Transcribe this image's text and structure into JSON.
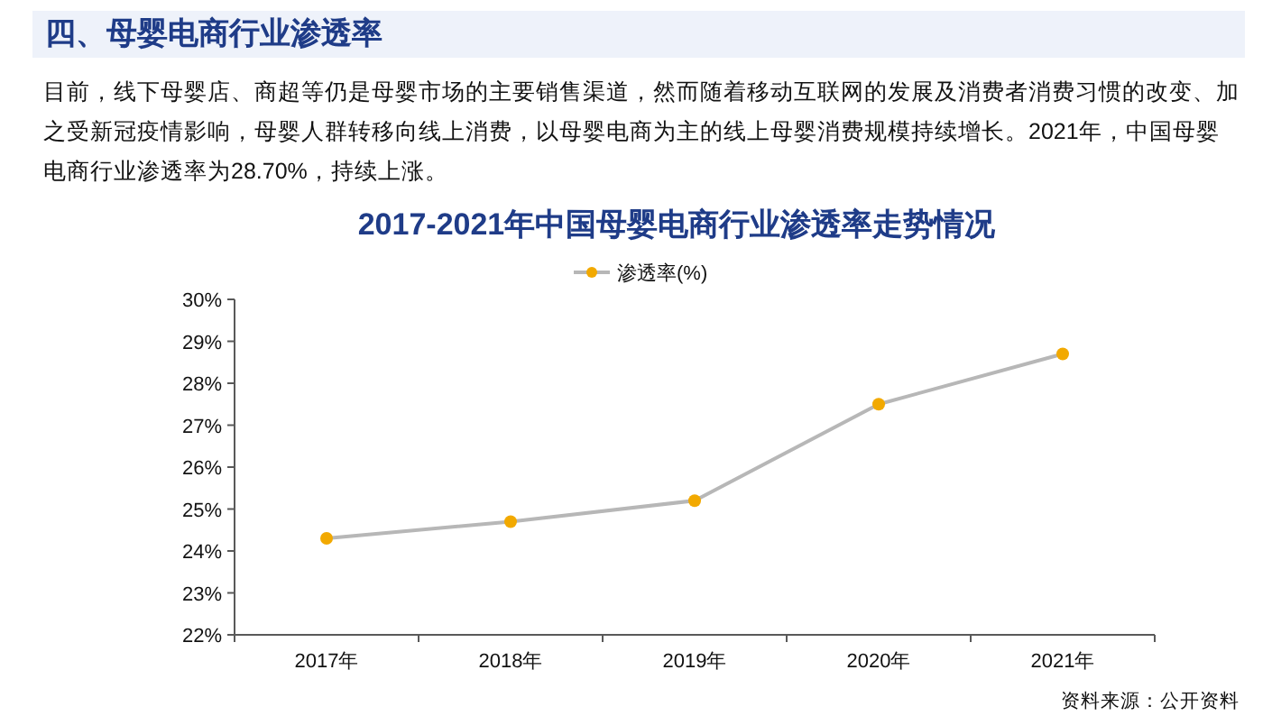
{
  "chart_data": {
    "type": "line",
    "title": "2017-2021年中国母婴电商行业渗透率走势情况",
    "categories": [
      "2017年",
      "2018年",
      "2019年",
      "2020年",
      "2021年"
    ],
    "series": [
      {
        "name": "渗透率(%)",
        "color": "#f2a900",
        "values": [
          24.3,
          24.7,
          25.2,
          27.5,
          28.7
        ]
      }
    ],
    "ylim": [
      22,
      30
    ],
    "yticks": [
      {
        "value": 22,
        "label": "22%"
      },
      {
        "value": 23,
        "label": "23%"
      },
      {
        "value": 24,
        "label": "24%"
      },
      {
        "value": 25,
        "label": "25%"
      },
      {
        "value": 26,
        "label": "26%"
      },
      {
        "value": 27,
        "label": "27%"
      },
      {
        "value": 28,
        "label": "28%"
      },
      {
        "value": 29,
        "label": "29%"
      },
      {
        "value": 30,
        "label": "30%"
      }
    ],
    "grid": false,
    "legend": "top",
    "marker": "circle",
    "line_style": "solid",
    "annotations": [
      "四、母婴电商行业渗透率",
      "目前，线下母婴店、商超等仍是母婴市场的主要销售渠道，然而随着移动互联网的发展及消费者消费习惯的改变、加之受新冠疫情影响，母婴人群转移向线上消费，以母婴电商为主的线上母婴消费规模持续增长。2021年，中国母婴电商行业渗透率为28.70%，持续上涨。",
      "资料来源：公开资料"
    ]
  }
}
